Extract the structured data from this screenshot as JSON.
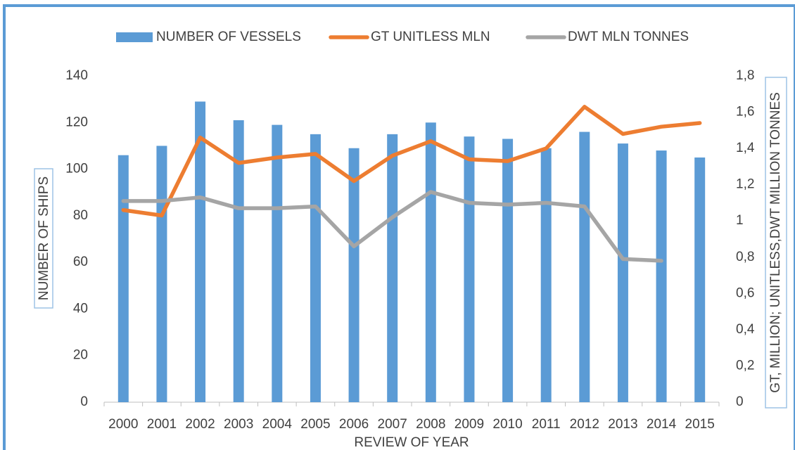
{
  "chart_data": {
    "type": "bar_line",
    "x_label": "REVIEW OF YEAR",
    "y_label": "NUMBER OF SHIPS",
    "y2_label": "GT, MILLION; UNITLESS,DWT MILLION TONNES",
    "categories": [
      "2000",
      "2001",
      "2002",
      "2003",
      "2004",
      "2005",
      "2006",
      "2007",
      "2008",
      "2009",
      "2010",
      "2011",
      "2012",
      "2013",
      "2014",
      "2015"
    ],
    "series": [
      {
        "name": "NUMBER OF VESSELS",
        "type": "bar",
        "color": "#5b9bd5",
        "values": [
          106,
          110,
          129,
          121,
          119,
          115,
          109,
          115,
          120,
          114,
          113,
          109,
          116,
          111,
          108,
          105
        ]
      },
      {
        "name": "GT UNITLESS MLN",
        "type": "line",
        "axis": "y2",
        "color": "#ed7d31",
        "values": [
          1.06,
          1.03,
          1.46,
          1.32,
          1.35,
          1.37,
          1.22,
          1.36,
          1.44,
          1.34,
          1.33,
          1.4,
          1.63,
          1.48,
          1.52,
          1.54
        ]
      },
      {
        "name": "DWT MLN TONNES",
        "type": "line",
        "axis": "y2",
        "color": "#a5a5a5",
        "values": [
          1.11,
          1.11,
          1.13,
          1.07,
          1.07,
          1.08,
          0.86,
          1.02,
          1.16,
          1.1,
          1.09,
          1.1,
          1.08,
          0.79,
          0.78,
          null
        ]
      }
    ],
    "ylim": [
      0,
      140
    ],
    "yticks": [
      0,
      20,
      40,
      60,
      80,
      100,
      120,
      140
    ],
    "y2lim": [
      0,
      1.8
    ],
    "y2ticks": [
      0,
      {
        "value": 0.2,
        "label": "0,2"
      },
      {
        "value": 0.4,
        "label": "0,4"
      },
      {
        "value": 0.6,
        "label": "0,6"
      },
      {
        "value": 0.8,
        "label": "0,8"
      },
      1,
      {
        "value": 1.2,
        "label": "1,2"
      },
      {
        "value": 1.4,
        "label": "1,4"
      },
      {
        "value": 1.6,
        "label": "1,6"
      },
      {
        "value": 1.8,
        "label": "1,8"
      }
    ],
    "legend": "top"
  }
}
